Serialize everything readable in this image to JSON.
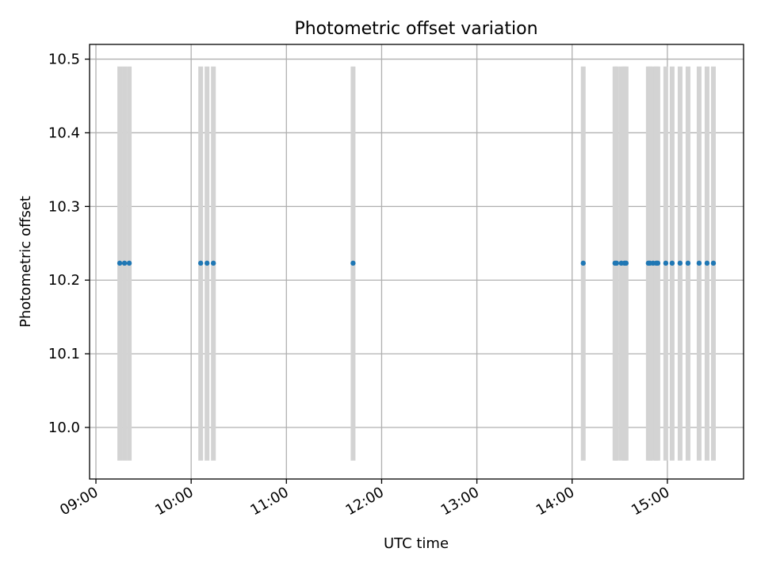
{
  "chart_data": {
    "type": "scatter",
    "title": "Photometric offset variation",
    "xlabel": "UTC time",
    "ylabel": "Photometric offset",
    "x_is_time": true,
    "xlim": [
      "08:56",
      "15:48"
    ],
    "ylim": [
      9.93,
      10.52
    ],
    "x_ticks": [
      "09:00",
      "10:00",
      "11:00",
      "12:00",
      "13:00",
      "14:00",
      "15:00"
    ],
    "y_ticks": [
      10.0,
      10.1,
      10.2,
      10.3,
      10.4,
      10.5
    ],
    "grid": true,
    "error_bars": {
      "color": "#d3d3d3",
      "low": 9.955,
      "high": 10.49
    },
    "series": [
      {
        "color": "#1f77b4",
        "x": [
          "09:15",
          "09:18",
          "09:21",
          "10:06",
          "10:10",
          "10:14",
          "11:42",
          "14:07",
          "14:27",
          "14:28",
          "14:31",
          "14:33",
          "14:34",
          "14:48",
          "14:49",
          "14:51",
          "14:53",
          "14:54",
          "14:59",
          "15:03",
          "15:08",
          "15:13",
          "15:20",
          "15:25",
          "15:29"
        ],
        "y": [
          10.223,
          10.223,
          10.223,
          10.223,
          10.223,
          10.223,
          10.223,
          10.223,
          10.223,
          10.223,
          10.223,
          10.223,
          10.223,
          10.223,
          10.223,
          10.223,
          10.223,
          10.223,
          10.223,
          10.223,
          10.223,
          10.223,
          10.223,
          10.223,
          10.223
        ]
      }
    ]
  }
}
